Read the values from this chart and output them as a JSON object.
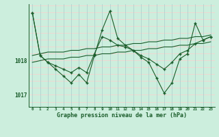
{
  "title": "Graphe pression niveau de la mer (hPa)",
  "bg_color": "#cceedd",
  "grid_color_h": "#ffcccc",
  "grid_color_v": "#aacccc",
  "line_color": "#1a5c2a",
  "xlim": [
    -0.5,
    23.5
  ],
  "ylim": [
    1016.65,
    1019.65
  ],
  "yticks": [
    1017,
    1018
  ],
  "xticks": [
    0,
    1,
    2,
    3,
    4,
    5,
    6,
    7,
    8,
    9,
    10,
    11,
    12,
    13,
    14,
    15,
    16,
    17,
    18,
    19,
    20,
    21,
    22,
    23
  ],
  "series_jagged": [
    1019.4,
    1018.15,
    1017.95,
    1017.75,
    1017.55,
    1017.35,
    1017.6,
    1017.35,
    1018.15,
    1018.9,
    1019.45,
    1018.65,
    1018.45,
    1018.3,
    1018.1,
    1017.95,
    1017.5,
    1017.05,
    1017.35,
    1018.05,
    1018.2,
    1019.1,
    1018.6,
    1018.7
  ],
  "series_smooth1": [
    1019.4,
    1018.15,
    1017.95,
    1017.85,
    1017.75,
    1017.65,
    1017.8,
    1017.65,
    1018.2,
    1018.7,
    1018.6,
    1018.45,
    1018.4,
    1018.3,
    1018.15,
    1018.05,
    1017.9,
    1017.75,
    1017.95,
    1018.2,
    1018.3,
    1018.5,
    1018.6,
    1018.7
  ],
  "series_linear1": [
    1018.15,
    1018.2,
    1018.25,
    1018.25,
    1018.25,
    1018.3,
    1018.3,
    1018.35,
    1018.35,
    1018.4,
    1018.4,
    1018.45,
    1018.45,
    1018.5,
    1018.5,
    1018.55,
    1018.55,
    1018.6,
    1018.6,
    1018.65,
    1018.65,
    1018.7,
    1018.7,
    1018.75
  ],
  "series_linear2": [
    1017.95,
    1018.0,
    1018.05,
    1018.05,
    1018.05,
    1018.1,
    1018.1,
    1018.15,
    1018.15,
    1018.2,
    1018.2,
    1018.25,
    1018.25,
    1018.3,
    1018.3,
    1018.35,
    1018.35,
    1018.4,
    1018.4,
    1018.45,
    1018.45,
    1018.5,
    1018.5,
    1018.55
  ]
}
